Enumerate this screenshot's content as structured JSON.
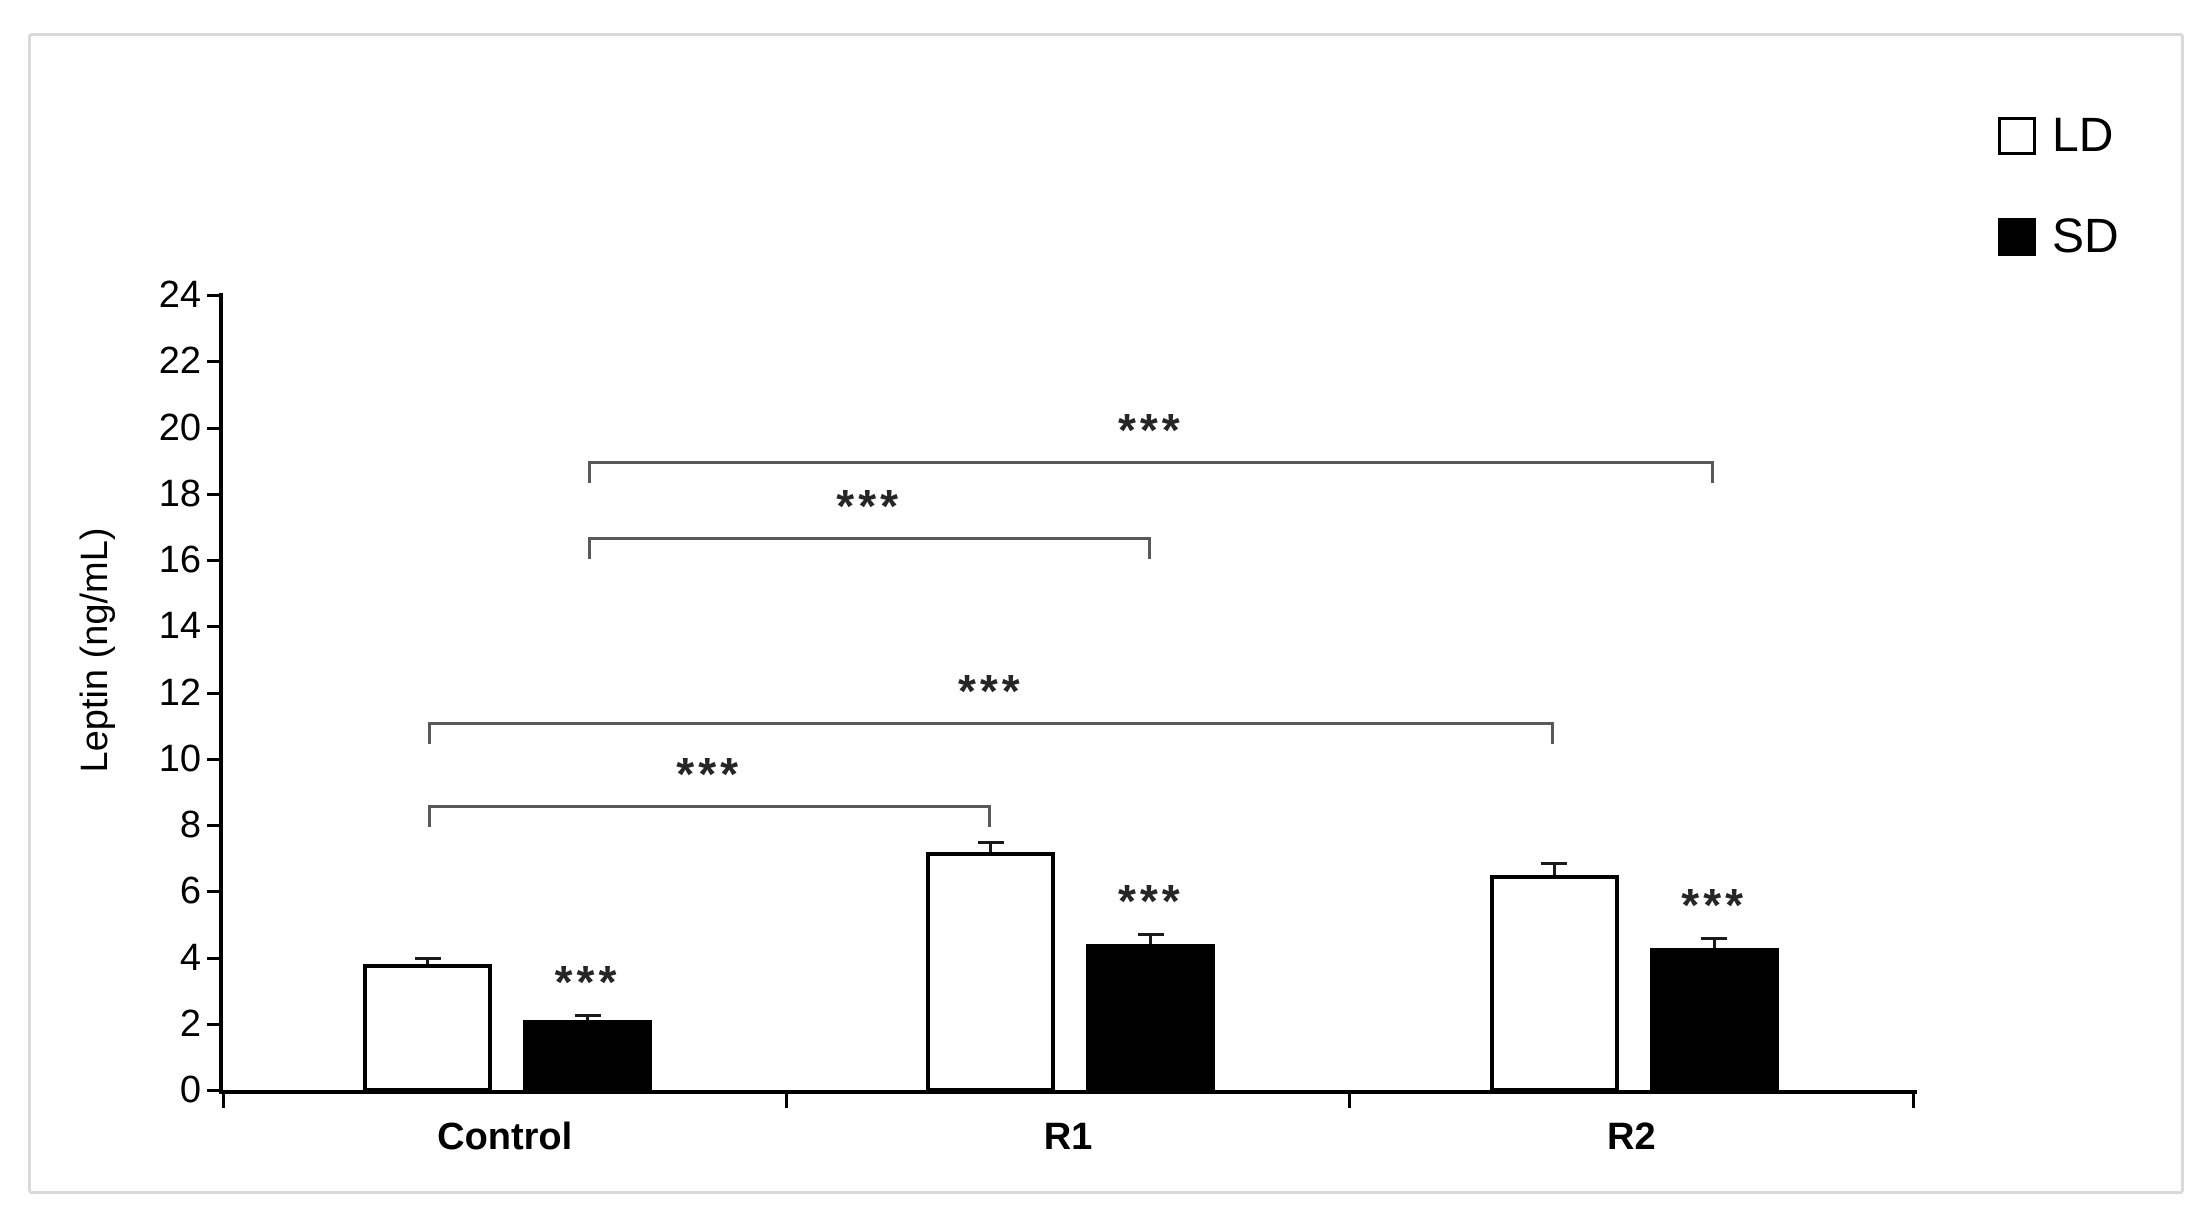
{
  "figure": {
    "background": "#ffffff",
    "frame_border_color": "#d9d9d9"
  },
  "legend": {
    "position": "top-right",
    "items": [
      {
        "label": "LD",
        "swatch_fill": "#ffffff"
      },
      {
        "label": "SD",
        "swatch_fill": "#000000"
      }
    ]
  },
  "chart_data": {
    "type": "bar",
    "title": "",
    "xlabel": "",
    "ylabel": "Leptin (ng/mL)",
    "ylim": [
      0,
      24
    ],
    "ytick_step": 2,
    "yticks": [
      0,
      2,
      4,
      6,
      8,
      10,
      12,
      14,
      16,
      18,
      20,
      22,
      24
    ],
    "grid": false,
    "categories": [
      "Control",
      "R1",
      "R2"
    ],
    "series": [
      {
        "name": "LD",
        "fill": "#ffffff",
        "values": [
          3.8,
          7.2,
          6.5
        ],
        "errors": [
          0.2,
          0.3,
          0.35
        ]
      },
      {
        "name": "SD",
        "fill": "#000000",
        "values": [
          2.1,
          4.4,
          4.3
        ],
        "errors": [
          0.15,
          0.3,
          0.3
        ]
      }
    ],
    "bar_annotations": [
      {
        "category": "Control",
        "series": "SD",
        "text": "***"
      },
      {
        "category": "R1",
        "series": "SD",
        "text": "***"
      },
      {
        "category": "R2",
        "series": "SD",
        "text": "***"
      }
    ],
    "significance_brackets": [
      {
        "from": {
          "category": "Control",
          "series": "LD"
        },
        "to": {
          "category": "R1",
          "series": "LD"
        },
        "level": 8.6,
        "text": "***"
      },
      {
        "from": {
          "category": "Control",
          "series": "LD"
        },
        "to": {
          "category": "R2",
          "series": "LD"
        },
        "level": 11.1,
        "text": "***"
      },
      {
        "from": {
          "category": "Control",
          "series": "SD"
        },
        "to": {
          "category": "R1",
          "series": "SD"
        },
        "level": 16.7,
        "text": "***"
      },
      {
        "from": {
          "category": "Control",
          "series": "SD"
        },
        "to": {
          "category": "R2",
          "series": "SD"
        },
        "level": 19.0,
        "text": "***"
      }
    ],
    "colors": {
      "axis": "#000000",
      "bracket": "#595959",
      "bar_ld": "#ffffff",
      "bar_sd": "#000000"
    }
  }
}
